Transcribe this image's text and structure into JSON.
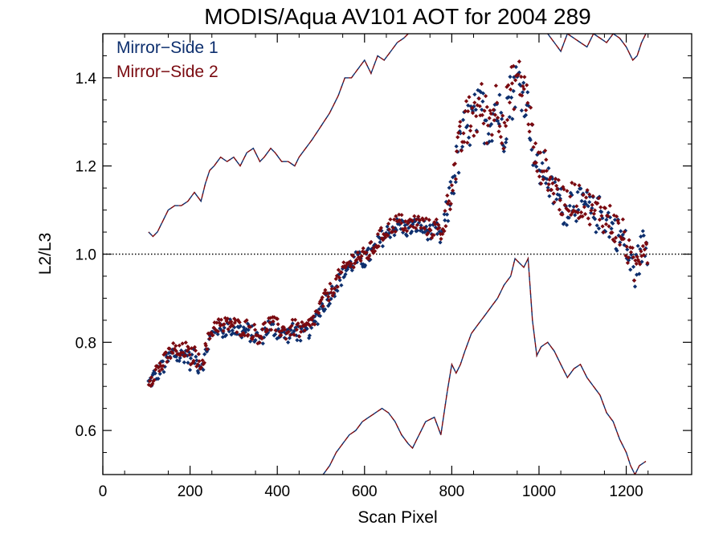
{
  "chart_data": {
    "type": "scatter",
    "title": "MODIS/Aqua AV101 AOT for 2004 289",
    "xlabel": "Scan Pixel",
    "ylabel": "L2/L3",
    "xlim": [
      0,
      1350
    ],
    "ylim": [
      0.5,
      1.5
    ],
    "x_ticks": [
      0,
      200,
      400,
      600,
      800,
      1000,
      1200
    ],
    "x_tick_labels": [
      "0",
      "200",
      "400",
      "600",
      "800",
      "1000",
      "1200"
    ],
    "y_ticks": [
      0.6,
      0.8,
      1.0,
      1.2,
      1.4
    ],
    "y_tick_labels": [
      "0.6",
      "0.8",
      "1.0",
      "1.2",
      "1.4"
    ],
    "reference_line": {
      "y": 1.0,
      "style": "dotted",
      "color": "#000000"
    },
    "legend_position": "top-left",
    "grid": false,
    "series": [
      {
        "name": "Mirror−Side 1",
        "color": "#0d2f6e",
        "marker": "diamond"
      },
      {
        "name": "Mirror−Side 2",
        "color": "#7a0a10",
        "marker": "diamond"
      }
    ],
    "profile": {
      "x": [
        105,
        120,
        140,
        160,
        175,
        190,
        200,
        210,
        220,
        230,
        245,
        260,
        275,
        290,
        310,
        330,
        345,
        360,
        380,
        400,
        420,
        440,
        460,
        470,
        480,
        490,
        500,
        520,
        540,
        560,
        580,
        600,
        620,
        640,
        660,
        680,
        700,
        720,
        740,
        755,
        765,
        775,
        790,
        800,
        810,
        820,
        830,
        840,
        850,
        860,
        870,
        880,
        890,
        900,
        910,
        920,
        930,
        940,
        950,
        960,
        970,
        980,
        990,
        1000,
        1010,
        1020,
        1030,
        1040,
        1050,
        1060,
        1070,
        1080,
        1090,
        1100,
        1110,
        1120,
        1130,
        1140,
        1150,
        1160,
        1170,
        1180,
        1190,
        1200,
        1210,
        1220,
        1230,
        1240,
        1250
      ],
      "y": [
        0.71,
        0.73,
        0.75,
        0.78,
        0.77,
        0.78,
        0.76,
        0.77,
        0.75,
        0.76,
        0.81,
        0.84,
        0.83,
        0.84,
        0.83,
        0.83,
        0.82,
        0.81,
        0.84,
        0.83,
        0.82,
        0.83,
        0.82,
        0.83,
        0.84,
        0.86,
        0.88,
        0.91,
        0.94,
        0.97,
        0.99,
        0.99,
        1.01,
        1.04,
        1.06,
        1.07,
        1.06,
        1.07,
        1.06,
        1.05,
        1.06,
        1.04,
        1.1,
        1.16,
        1.2,
        1.25,
        1.28,
        1.3,
        1.31,
        1.32,
        1.33,
        1.3,
        1.31,
        1.34,
        1.32,
        1.29,
        1.35,
        1.37,
        1.4,
        1.38,
        1.36,
        1.3,
        1.22,
        1.19,
        1.2,
        1.18,
        1.14,
        1.15,
        1.12,
        1.1,
        1.12,
        1.13,
        1.11,
        1.12,
        1.11,
        1.1,
        1.09,
        1.1,
        1.08,
        1.08,
        1.06,
        1.05,
        1.04,
        1.02,
        0.98,
        0.96,
        1.0,
        1.03,
        1.01
      ],
      "scatter_spread": [
        0.02,
        0.02,
        0.02,
        0.02,
        0.02,
        0.02,
        0.02,
        0.02,
        0.02,
        0.02,
        0.02,
        0.02,
        0.02,
        0.02,
        0.02,
        0.02,
        0.02,
        0.02,
        0.02,
        0.02,
        0.02,
        0.02,
        0.02,
        0.02,
        0.02,
        0.02,
        0.02,
        0.02,
        0.02,
        0.02,
        0.02,
        0.02,
        0.02,
        0.02,
        0.02,
        0.02,
        0.02,
        0.02,
        0.02,
        0.02,
        0.02,
        0.02,
        0.04,
        0.04,
        0.05,
        0.05,
        0.06,
        0.06,
        0.06,
        0.06,
        0.06,
        0.06,
        0.06,
        0.06,
        0.06,
        0.06,
        0.06,
        0.06,
        0.05,
        0.05,
        0.05,
        0.05,
        0.04,
        0.04,
        0.04,
        0.04,
        0.04,
        0.04,
        0.04,
        0.04,
        0.04,
        0.04,
        0.04,
        0.04,
        0.04,
        0.04,
        0.04,
        0.04,
        0.04,
        0.04,
        0.04,
        0.04,
        0.04,
        0.04,
        0.04,
        0.04,
        0.04,
        0.04,
        0.04
      ]
    },
    "upper_band": {
      "x": [
        105,
        115,
        125,
        135,
        150,
        165,
        180,
        195,
        210,
        225,
        235,
        245,
        255,
        270,
        285,
        300,
        315,
        330,
        345,
        360,
        370,
        385,
        395,
        410,
        425,
        440,
        450,
        465,
        480,
        500,
        520,
        540,
        555,
        570,
        585,
        600,
        615,
        630,
        645,
        660,
        675,
        690,
        700
      ],
      "y": [
        1.05,
        1.04,
        1.05,
        1.07,
        1.1,
        1.11,
        1.11,
        1.12,
        1.14,
        1.12,
        1.16,
        1.19,
        1.2,
        1.22,
        1.21,
        1.22,
        1.2,
        1.23,
        1.24,
        1.21,
        1.22,
        1.24,
        1.23,
        1.21,
        1.21,
        1.2,
        1.22,
        1.24,
        1.26,
        1.29,
        1.32,
        1.36,
        1.4,
        1.4,
        1.42,
        1.44,
        1.41,
        1.45,
        1.44,
        1.46,
        1.48,
        1.49,
        1.5
      ]
    },
    "upper_band_right": {
      "x": [
        1020,
        1035,
        1050,
        1065,
        1080,
        1095,
        1110,
        1125,
        1140,
        1155,
        1170,
        1185,
        1200,
        1215,
        1225,
        1235,
        1245
      ],
      "y": [
        1.5,
        1.48,
        1.46,
        1.5,
        1.49,
        1.48,
        1.47,
        1.5,
        1.49,
        1.48,
        1.5,
        1.49,
        1.47,
        1.44,
        1.45,
        1.48,
        1.5
      ]
    },
    "lower_band": {
      "x": [
        505,
        520,
        535,
        550,
        565,
        580,
        595,
        610,
        625,
        640,
        655,
        670,
        685,
        700,
        710,
        720,
        730,
        740,
        760,
        775,
        790,
        800,
        810,
        820,
        830,
        845,
        860,
        875,
        890,
        905,
        920,
        935,
        945,
        955,
        965,
        975,
        985,
        995,
        1005,
        1020,
        1035,
        1050,
        1065,
        1080,
        1095,
        1110,
        1125,
        1140,
        1155,
        1170,
        1185,
        1200,
        1210,
        1220,
        1230,
        1245
      ],
      "y": [
        0.5,
        0.52,
        0.55,
        0.57,
        0.59,
        0.6,
        0.62,
        0.63,
        0.64,
        0.65,
        0.64,
        0.62,
        0.59,
        0.57,
        0.56,
        0.58,
        0.6,
        0.62,
        0.63,
        0.59,
        0.69,
        0.75,
        0.73,
        0.75,
        0.78,
        0.82,
        0.84,
        0.86,
        0.88,
        0.9,
        0.93,
        0.95,
        0.99,
        0.98,
        0.97,
        0.99,
        0.85,
        0.77,
        0.79,
        0.8,
        0.78,
        0.75,
        0.72,
        0.74,
        0.75,
        0.72,
        0.7,
        0.68,
        0.64,
        0.62,
        0.58,
        0.55,
        0.52,
        0.5,
        0.52,
        0.53
      ]
    }
  }
}
